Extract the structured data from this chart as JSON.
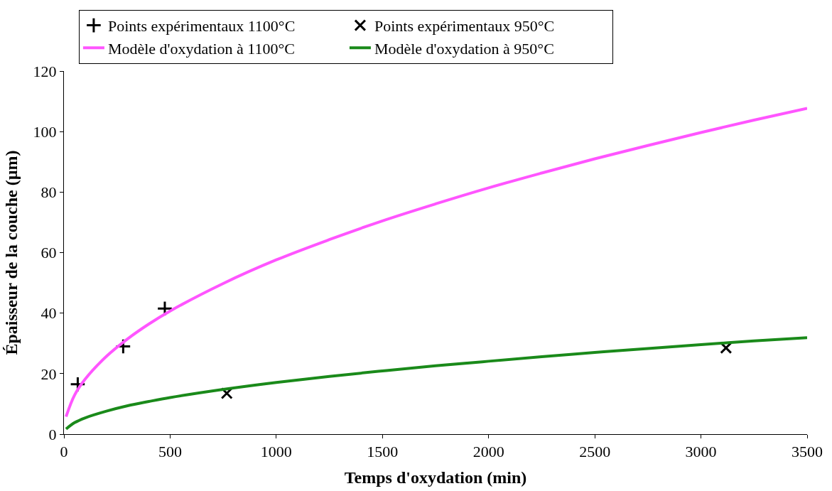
{
  "chart_data": {
    "type": "line",
    "xlabel": "Temps d'oxydation (min)",
    "ylabel": "Épaisseur de la couche (µm)",
    "xlim": [
      0,
      3500
    ],
    "xticks": [
      0,
      500,
      1000,
      1500,
      2000,
      2500,
      3000,
      3500
    ],
    "ylim": [
      0,
      120
    ],
    "yticks": [
      0,
      20,
      40,
      60,
      80,
      100,
      120
    ],
    "legend": "top",
    "series": [
      {
        "name": "Points expérimentaux 1100°C",
        "type": "scatter",
        "marker": "cross",
        "color": "#000000",
        "x": [
          65,
          279,
          475
        ],
        "values": [
          16.5,
          29,
          41.5
        ]
      },
      {
        "name": "Points expérimentaux 950°C",
        "type": "scatter",
        "marker": "x",
        "color": "#000000",
        "x": [
          767,
          3118
        ],
        "values": [
          13.5,
          28.5
        ]
      },
      {
        "name": "Modèle d'oxydation à 1100°C",
        "marker": "none",
        "color": "#ff55ff",
        "x": [
          10,
          50,
          100,
          200,
          300,
          400,
          500,
          750,
          1000,
          1250,
          1500,
          1750,
          2000,
          2250,
          2500,
          2750,
          3000,
          3250,
          3500
        ],
        "values": [
          5.8,
          12.9,
          18.2,
          25.7,
          31.5,
          36.4,
          40.7,
          49.8,
          57.6,
          64.3,
          70.5,
          76.1,
          81.4,
          86.3,
          91.0,
          95.4,
          99.7,
          103.8,
          107.7
        ]
      },
      {
        "name": "Modèle d'oxydation à 950°C",
        "marker": "none",
        "color": "#1a8a1a",
        "x": [
          10,
          50,
          100,
          200,
          300,
          400,
          500,
          750,
          1000,
          1250,
          1500,
          1750,
          2000,
          2250,
          2500,
          2750,
          3000,
          3250,
          3500
        ],
        "values": [
          1.7,
          3.8,
          5.4,
          7.6,
          9.4,
          10.8,
          12.1,
          14.8,
          17.1,
          19.1,
          20.9,
          22.6,
          24.1,
          25.6,
          27.0,
          28.3,
          29.6,
          30.8,
          31.9
        ]
      }
    ]
  }
}
